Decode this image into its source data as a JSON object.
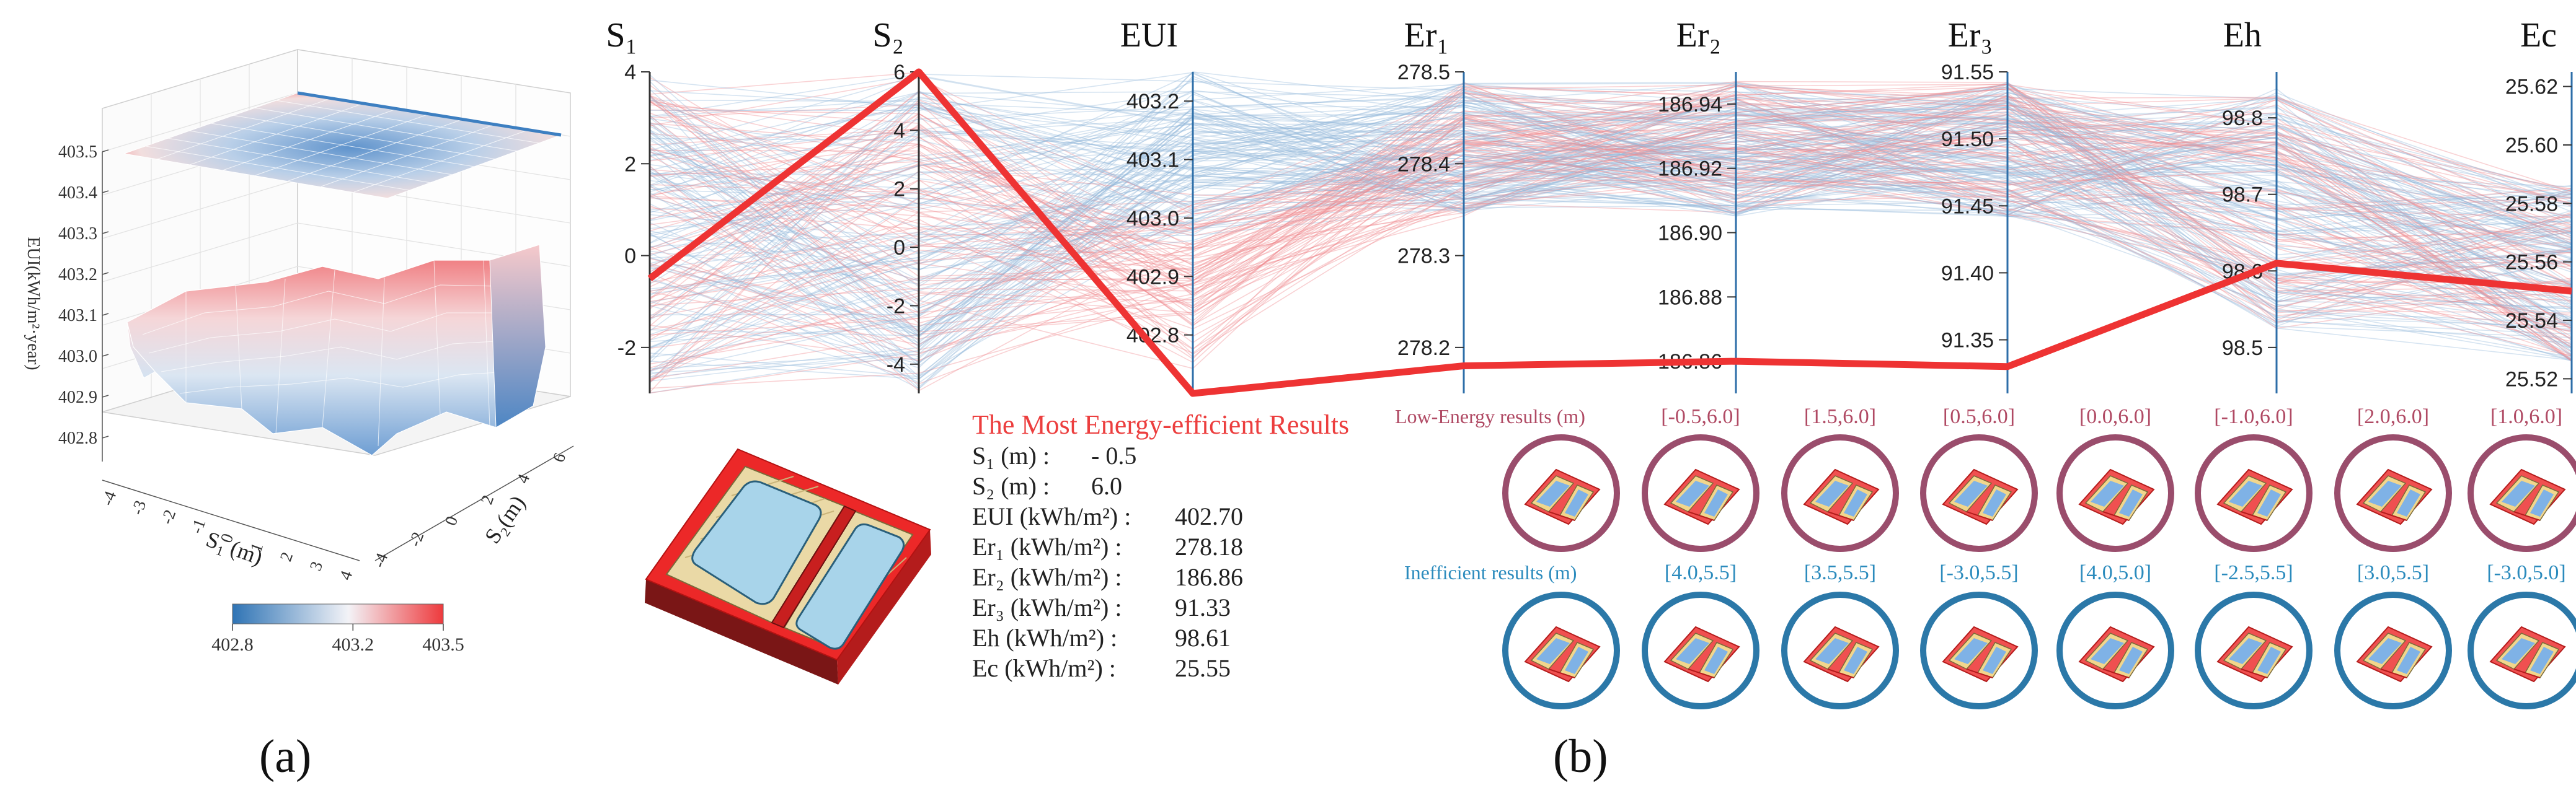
{
  "panel_labels": {
    "a": "(a)",
    "b": "(b)"
  },
  "colors": {
    "low": "#2f74b5",
    "mid": "#f4f4f8",
    "high": "#ee3a3d",
    "best_line": "#ee3333",
    "low_energy_label": "#b04a64",
    "inefficient_label": "#2b8bbd",
    "low_ring": "#9a4d6c",
    "ineff_ring": "#2b78a8"
  },
  "surface_plot": {
    "z_ticks": [
      "403.5",
      "403.4",
      "403.3",
      "403.2",
      "403.1",
      "403.0",
      "402.9",
      "402.8"
    ],
    "z_label": "EUI(kWh/m²·year)",
    "s1_ticks": [
      "-4",
      "-3",
      "-2",
      "-1",
      "0",
      "1",
      "2",
      "3",
      "4"
    ],
    "s2_ticks": [
      "-4",
      "-2",
      "0",
      "2",
      "4",
      "6"
    ],
    "x_label": "S₁ (m)",
    "y_label": "S₂(m)",
    "colorbar_ticks": [
      "402.8",
      "403.2",
      "403.5"
    ]
  },
  "chart_data": [
    {
      "type": "surface3d",
      "title": "",
      "xlabel": "S1 (m)",
      "ylabel": "S2 (m)",
      "zlabel": "EUI(kWh/m2*year)",
      "xlim": [
        -4,
        4
      ],
      "ylim": [
        -4,
        6
      ],
      "zlim": [
        402.8,
        403.5
      ],
      "colorbar": {
        "min": 402.8,
        "max": 403.5,
        "ticks": [
          402.8,
          403.2,
          403.5
        ]
      }
    },
    {
      "type": "parallel_coordinates",
      "axes": [
        {
          "name": "S₁",
          "key": "S1",
          "range": [
            -3,
            4
          ],
          "ticks": [
            "4",
            "2",
            "0",
            "-2"
          ],
          "tick_values": [
            4,
            2,
            0,
            -2
          ]
        },
        {
          "name": "S₂",
          "key": "S2",
          "range": [
            -5,
            6
          ],
          "ticks": [
            "6",
            "4",
            "2",
            "0",
            "-2",
            "-4"
          ],
          "tick_values": [
            6,
            4,
            2,
            0,
            -2,
            -4
          ]
        },
        {
          "name": "EUI",
          "key": "EUI",
          "range": [
            402.7,
            403.25
          ],
          "ticks": [
            "403.2",
            "403.1",
            "403.0",
            "402.9",
            "402.8"
          ],
          "tick_values": [
            403.2,
            403.1,
            403.0,
            402.9,
            402.8
          ]
        },
        {
          "name": "Er₁",
          "key": "Er1",
          "range": [
            278.15,
            278.5
          ],
          "ticks": [
            "278.5",
            "278.4",
            "278.3",
            "278.2"
          ],
          "tick_values": [
            278.5,
            278.4,
            278.3,
            278.2
          ]
        },
        {
          "name": "Er₂",
          "key": "Er2",
          "range": [
            186.85,
            186.95
          ],
          "ticks": [
            "186.94",
            "186.92",
            "186.90",
            "186.88",
            "186.86"
          ],
          "tick_values": [
            186.94,
            186.92,
            186.9,
            186.88,
            186.86
          ]
        },
        {
          "name": "Er₃",
          "key": "Er3",
          "range": [
            91.31,
            91.55
          ],
          "ticks": [
            "91.55",
            "91.50",
            "91.45",
            "91.40",
            "91.35"
          ],
          "tick_values": [
            91.55,
            91.5,
            91.45,
            91.4,
            91.35
          ]
        },
        {
          "name": "Eh",
          "key": "Eh",
          "range": [
            98.44,
            98.86
          ],
          "ticks": [
            "98.8",
            "98.7",
            "98.6",
            "98.5"
          ],
          "tick_values": [
            98.8,
            98.7,
            98.6,
            98.5
          ]
        },
        {
          "name": "Ec",
          "key": "Ec",
          "range": [
            25.515,
            25.625
          ],
          "ticks": [
            "25.62",
            "25.60",
            "25.58",
            "25.56",
            "25.54",
            "25.52"
          ],
          "tick_values": [
            25.62,
            25.6,
            25.58,
            25.56,
            25.54,
            25.52
          ]
        }
      ],
      "highlight": {
        "name": "The Most Energy-efficient Results",
        "values": {
          "S1": -0.5,
          "S2": 6.0,
          "EUI": 402.7,
          "Er1": 278.18,
          "Er2": 186.86,
          "Er3": 91.33,
          "Eh": 98.61,
          "Ec": 25.55
        }
      },
      "note": "Hundreds of background solution lines colored from blue (high EUI) to red (low EUI)"
    }
  ],
  "best_results": {
    "title": "The Most Energy-efficient Results",
    "lines": [
      {
        "label": "S₁ (m) :",
        "value": "- 0.5"
      },
      {
        "label": "S₂ (m) :",
        "value": "6.0"
      },
      {
        "label": "EUI (kWh/m²) :",
        "value": "402.70"
      },
      {
        "label": "Er₁ (kWh/m²) :",
        "value": "278.18"
      },
      {
        "label": "Er₂ (kWh/m²) :",
        "value": "186.86"
      },
      {
        "label": "Er₃ (kWh/m²) :",
        "value": "91.33"
      },
      {
        "label": "Eh (kWh/m²) :",
        "value": "98.61"
      },
      {
        "label": "Ec (kWh/m²) :",
        "value": "25.55"
      }
    ]
  },
  "low_energy": {
    "label": "Low-Energy results (m)",
    "items": [
      "[-0.5,6.0]",
      "[1.5,6.0]",
      "[0.5,6.0]",
      "[0.0,6.0]",
      "[-1.0,6.0]",
      "[2.0,6.0]",
      "[1.0,6.0]"
    ]
  },
  "inefficient": {
    "label": "Inefficient results (m)",
    "items": [
      "[4.0,5.5]",
      "[3.5,5.5]",
      "[-3.0,5.5]",
      "[4.0,5.0]",
      "[-2.5,5.5]",
      "[3.0,5.5]",
      "[-3.0,5.0]"
    ]
  }
}
